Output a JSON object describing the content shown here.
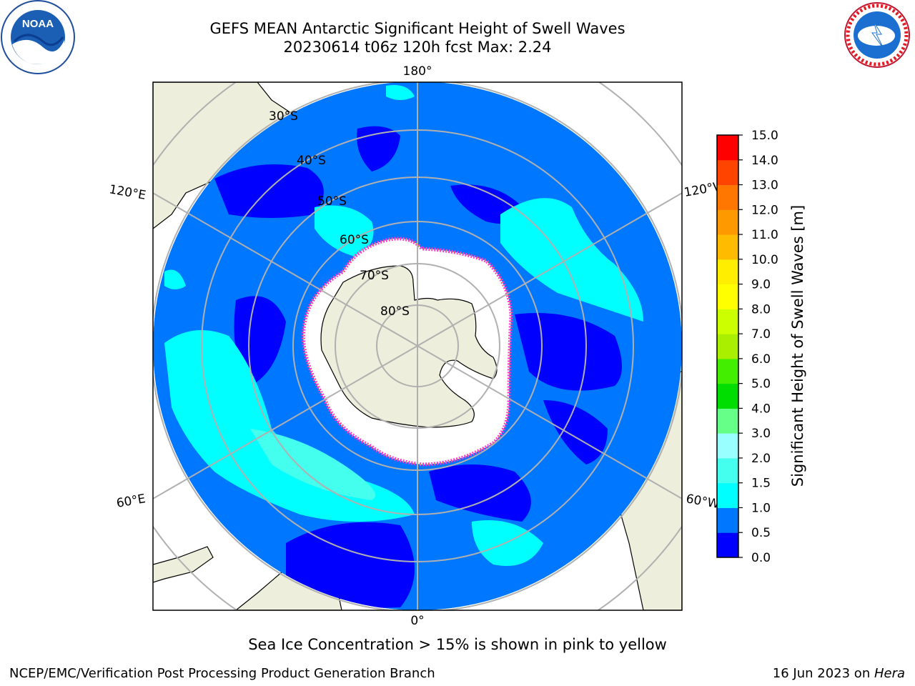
{
  "header": {
    "title_line1": "GEFS MEAN Antarctic Significant Height of Swell Waves",
    "title_line2": "20230614 t06z 120h fcst   Max: 2.24"
  },
  "logos": {
    "left_icon": "noaa-logo-icon",
    "left_text": "NOAA",
    "right_icon": "national-weather-service-logo-icon",
    "right_text": "NATIONAL WEATHER SERVICE"
  },
  "map": {
    "projection": "south-polar-stereographic",
    "meridian_labels": {
      "top": "180°",
      "bottom": "0°",
      "upper_left": "120°E",
      "lower_left": "60°E",
      "upper_right": "120°W",
      "lower_right": "60°W"
    },
    "latitude_labels": [
      "30°S",
      "40°S",
      "50°S",
      "60°S",
      "70°S",
      "80°S"
    ],
    "colors": {
      "land": "#eeeedc",
      "sea_ice": "#ffffff",
      "ice_edge": "#ff33cc",
      "grid": "#b0b0b0"
    }
  },
  "colorbar": {
    "label": "Significant Height of Swell Waves [m]",
    "ticks": [
      "0.0",
      "0.5",
      "1.0",
      "1.5",
      "2.0",
      "3.0",
      "4.0",
      "5.0",
      "6.0",
      "7.0",
      "8.0",
      "9.0",
      "10.0",
      "11.0",
      "12.0",
      "13.0",
      "14.0",
      "15.0"
    ],
    "colors": [
      "#0000ff",
      "#0077ff",
      "#00ffff",
      "#44ffee",
      "#99ffff",
      "#66ff88",
      "#00dd00",
      "#44ee00",
      "#aaee00",
      "#ccff00",
      "#ffff00",
      "#ffee00",
      "#ffbb00",
      "#ff9900",
      "#ff7700",
      "#ff4400",
      "#ff0000"
    ]
  },
  "footer": {
    "note": "Sea Ice Concentration > 15% is shown in pink to yellow",
    "left": "NCEP/EMC/Verification Post Processing Product Generation Branch",
    "right_date": "16 Jun 2023 on ",
    "right_host": "Hera"
  }
}
